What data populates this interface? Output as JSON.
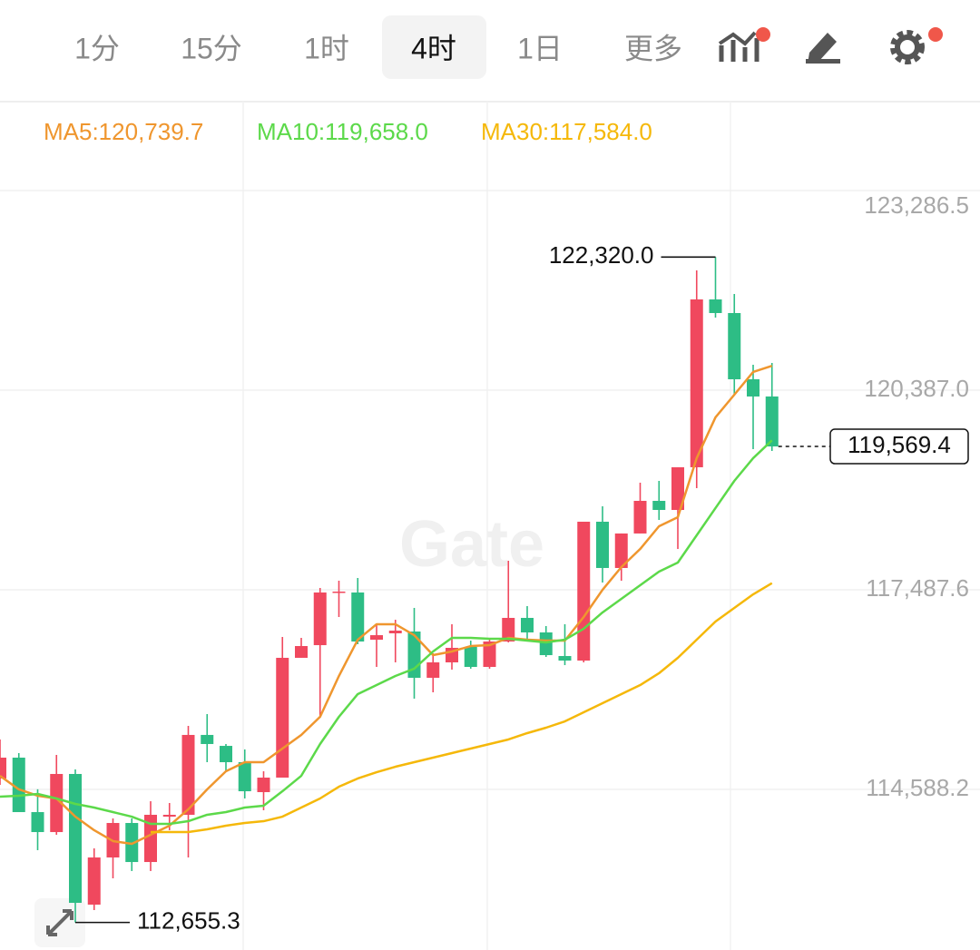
{
  "tabs": [
    {
      "label": "1分",
      "selected": false
    },
    {
      "label": "15分",
      "selected": false
    },
    {
      "label": "1时",
      "selected": false
    },
    {
      "label": "4时",
      "selected": true
    },
    {
      "label": "1日",
      "selected": false
    },
    {
      "label": "更多",
      "selected": false
    }
  ],
  "watermark": "Gate",
  "chart_data": {
    "type": "candlestick",
    "categories": [
      null,
      null,
      null,
      null,
      null,
      null,
      null,
      null,
      null,
      null,
      null,
      null,
      null,
      null,
      null,
      null,
      null,
      null,
      null,
      null,
      null,
      null,
      null,
      null,
      null,
      null,
      null,
      null,
      null,
      null,
      null,
      null,
      null,
      null,
      null,
      null,
      null,
      null,
      null,
      null,
      null,
      null
    ],
    "open": [
      114746,
      115049,
      114258,
      113968,
      114812,
      112914,
      113599,
      114100,
      113533,
      114192,
      114219,
      115379,
      115220,
      114983,
      114548,
      114759,
      116499,
      116683,
      117448,
      117448,
      116762,
      116855,
      116881,
      116209,
      116433,
      116657,
      116367,
      116736,
      117079,
      116868,
      116525,
      116459,
      118476,
      117804,
      118305,
      118779,
      118647,
      119267,
      121705,
      121507,
      120545,
      120295
    ],
    "high": [
      115313,
      115115,
      114590,
      115089,
      114878,
      113731,
      114166,
      114166,
      114416,
      114390,
      115510,
      115682,
      115247,
      115168,
      114851,
      116802,
      116789,
      117514,
      117619,
      117659,
      116987,
      117052,
      117224,
      116565,
      116987,
      116749,
      116762,
      117909,
      117250,
      116960,
      116987,
      118476,
      118700,
      118305,
      119043,
      119069,
      119267,
      122127,
      122320,
      121784,
      120756,
      120782
    ],
    "low": [
      114654,
      114258,
      113705,
      113929,
      112655.3,
      112835,
      113296,
      113402,
      113402,
      113995,
      113599,
      114983,
      114851,
      114456,
      114285,
      114759,
      116499,
      115642,
      117092,
      116697,
      116367,
      116433,
      115906,
      115998,
      116328,
      116341,
      116341,
      116723,
      116762,
      116512,
      116393,
      116433,
      117593,
      117619,
      118305,
      118502,
      118080,
      118964,
      121441,
      120321,
      119530,
      119504
    ],
    "close": [
      115049,
      114258,
      113968,
      114812,
      112940,
      113599,
      114100,
      113533,
      114219,
      114219,
      115379,
      115247,
      114983,
      114561,
      114759,
      116499,
      116670,
      117448,
      117461,
      116736,
      116828,
      116894,
      116209,
      116433,
      116644,
      116367,
      116736,
      117079,
      116868,
      116538,
      116459,
      118476,
      117804,
      118305,
      118779,
      118647,
      119267,
      121705,
      121507,
      120545,
      120295,
      119569.4
    ],
    "up_color": "#f0485e",
    "down_color": "#2dbd85",
    "series": [
      {
        "name": "MA5:120,739.7",
        "color": "#ef962e",
        "values": [
          114785,
          114588,
          114496,
          114456,
          114192,
          113995,
          113837,
          113797,
          113929,
          114061,
          114298,
          114588,
          114851,
          114983,
          114983,
          115181,
          115379,
          115642,
          116235,
          116762,
          116987,
          116987,
          116828,
          116538,
          116591,
          116670,
          116683,
          116789,
          116762,
          116749,
          116749,
          117092,
          117487,
          117817,
          118080,
          118410,
          118542,
          119399,
          119992,
          120321,
          120651,
          120739.7
        ]
      },
      {
        "name": "MA10:119,658.0",
        "color": "#5cd94a",
        "values": [
          114482,
          114496,
          114522,
          114456,
          114377,
          114324,
          114258,
          114192,
          114087,
          114087,
          114126,
          114219,
          114258,
          114324,
          114351,
          114561,
          114785,
          115247,
          115642,
          115972,
          116103,
          116235,
          116341,
          116591,
          116789,
          116789,
          116776,
          116776,
          116749,
          116723,
          116762,
          116921,
          117158,
          117356,
          117553,
          117751,
          117883,
          118278,
          118674,
          119069,
          119399,
          119658
        ]
      },
      {
        "name": "MA30:117,584.0",
        "color": "#f5b80a",
        "values": [
          null,
          null,
          null,
          null,
          null,
          null,
          null,
          null,
          113968,
          113968,
          113968,
          114008,
          114061,
          114100,
          114126,
          114192,
          114324,
          114456,
          114627,
          114746,
          114838,
          114917,
          114983,
          115049,
          115115,
          115181,
          115247,
          115313,
          115405,
          115484,
          115576,
          115708,
          115840,
          115972,
          116103,
          116275,
          116499,
          116762,
          117026,
          117224,
          117421,
          117584
        ]
      }
    ],
    "ylim": [
      112255,
      124578
    ],
    "yticks": [
      {
        "value": 123286.5,
        "label": "123,286.5"
      },
      {
        "value": 120387.0,
        "label": "120,387.0"
      },
      {
        "value": 117487.6,
        "label": "117,487.6"
      },
      {
        "value": 114588.2,
        "label": "114,588.2"
      }
    ],
    "grid": true,
    "annotations": [
      {
        "label": "122,320.0",
        "value": 122320
      },
      {
        "label": "112,655.3",
        "value": 112655.3
      }
    ],
    "last_price": {
      "value": 119569.4,
      "label": "119,569.4"
    }
  }
}
